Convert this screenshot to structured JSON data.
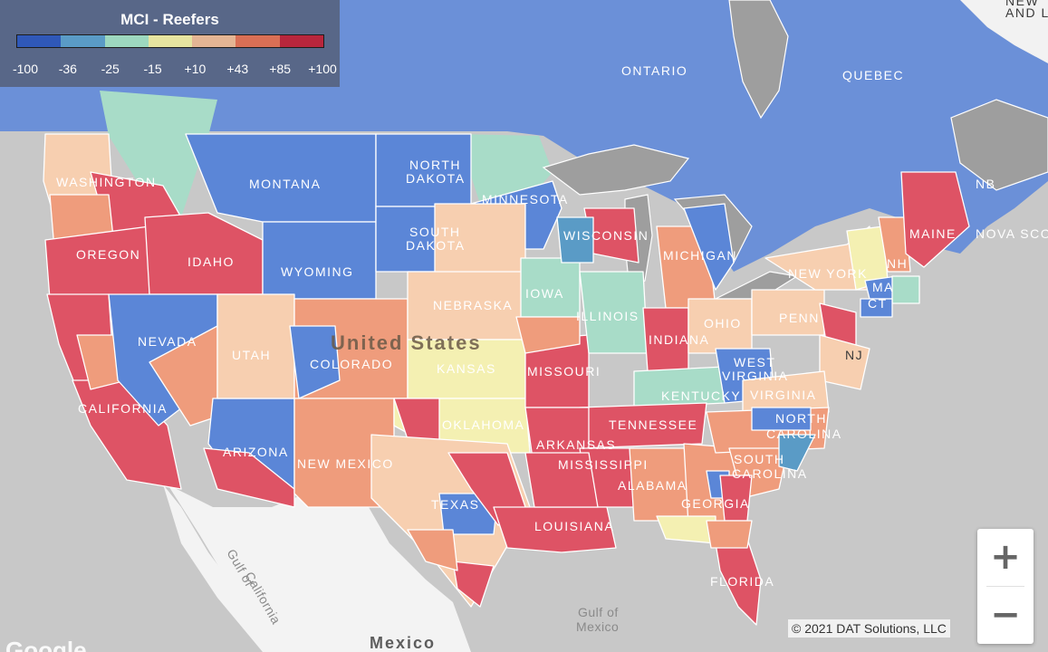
{
  "legend": {
    "title": "MCI - Reefers",
    "colors": [
      "#2f58b8",
      "#5a9bc6",
      "#9dd8bf",
      "#e6e4a0",
      "#e4b594",
      "#d96f55",
      "#b8263c"
    ],
    "ticks": [
      "-100",
      "-36",
      "-25",
      "-15",
      "+10",
      "+43",
      "+85",
      "+100"
    ]
  },
  "palette": {
    "blue": "#5b86d7",
    "teal": "#a8dcc8",
    "yellow": "#f4f0b2",
    "peach": "#f7cfb0",
    "salmon": "#ef9c7c",
    "red": "#de5365",
    "land_gray": "#f2f2f2",
    "water_gray": "#c8c8c8",
    "lake_gray": "#9e9e9e"
  },
  "labels": {
    "washington": "Washington",
    "oregon": "Oregon",
    "idaho": "Idaho",
    "montana": "Montana",
    "north_dakota_1": "North",
    "north_dakota_2": "Dakota",
    "south_dakota_1": "South",
    "south_dakota_2": "Dakota",
    "wyoming": "Wyoming",
    "minnesota": "Minnesota",
    "wisconsin": "Wisconsin",
    "michigan": "Michigan",
    "iowa": "Iowa",
    "nebraska": "Nebraska",
    "illinois": "Illinois",
    "indiana": "Indiana",
    "ohio": "Ohio",
    "penn": "Penn",
    "new_york": "New York",
    "maine": "Maine",
    "nh": "NH",
    "ma": "MA",
    "ct": "CT",
    "nj": "NJ",
    "nevada": "Nevada",
    "utah": "Utah",
    "colorado": "Colorado",
    "kansas": "Kansas",
    "missouri": "Missouri",
    "kentucky": "Kentucky",
    "west_virginia_1": "West",
    "west_virginia_2": "Virginia",
    "virginia": "Virginia",
    "california": "California",
    "arizona": "Arizona",
    "new_mexico": "New Mexico",
    "oklahoma": "Oklahoma",
    "arkansas": "Arkansas",
    "tennessee": "Tennessee",
    "north_carolina_1": "North",
    "north_carolina_2": "Carolina",
    "south_carolina_1": "South",
    "south_carolina_2": "Carolina",
    "mississippi": "Mississippi",
    "alabama": "Alabama",
    "georgia": "Georgia",
    "texas": "Texas",
    "louisiana": "Louisiana",
    "florida": "Florida",
    "ontario": "Ontario",
    "quebec": "Quebec",
    "nb": "NB",
    "nova_scotia": "Nova Sco",
    "newfoundland_1": "New",
    "newfoundland_2": "and L",
    "united_states": "United States",
    "mexico": "Mexico",
    "gulf_of_california_1": "Gulf of",
    "gulf_of_california_2": "California",
    "gulf_of_mexico_1": "Gulf of",
    "gulf_of_mexico_2": "Mexico"
  },
  "controls": {
    "zoom_in": "+",
    "zoom_out": "−"
  },
  "attribution": "© 2021 DAT Solutions, LLC",
  "logo": "Google"
}
